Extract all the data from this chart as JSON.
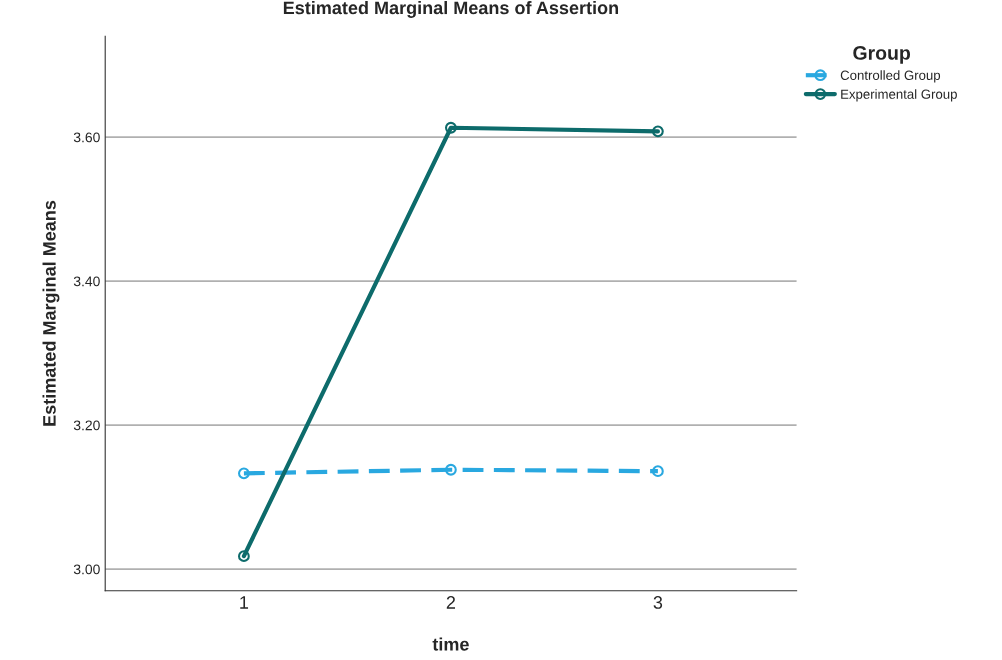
{
  "chart_data": {
    "type": "line",
    "title": "Estimated Marginal Means of Assertion",
    "xlabel": "time",
    "ylabel": "Estimated Marginal Means",
    "legend_title": "Group",
    "categories": [
      "1",
      "2",
      "3"
    ],
    "series": [
      {
        "name": "Controlled Group",
        "color": "#29a8e0",
        "values": [
          3.133,
          3.138,
          3.136
        ],
        "line_style": "dashed"
      },
      {
        "name": "Experimental Group",
        "color": "#0d6b6b",
        "values": [
          3.018,
          3.613,
          3.608
        ],
        "line_style": "solid"
      }
    ],
    "ylim": [
      2.97,
      3.74
    ],
    "yticks": [
      {
        "value": 3.0,
        "label": "3.00"
      },
      {
        "value": 3.2,
        "label": "3.20"
      },
      {
        "value": 3.4,
        "label": "3.40"
      },
      {
        "value": 3.6,
        "label": "3.60"
      }
    ],
    "grid": "y",
    "legend": "top right",
    "marker": "circle"
  }
}
